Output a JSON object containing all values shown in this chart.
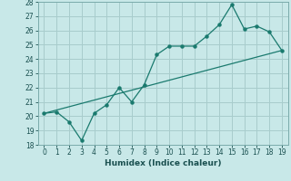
{
  "xlabel": "Humidex (Indice chaleur)",
  "line1_x": [
    0,
    1,
    2,
    3,
    4,
    5,
    6,
    7,
    8,
    9,
    10,
    11,
    12,
    13,
    14,
    15,
    16,
    17,
    18,
    19
  ],
  "line1_y": [
    20.2,
    20.3,
    19.6,
    18.3,
    20.2,
    20.8,
    22.0,
    21.0,
    22.2,
    24.3,
    24.9,
    24.9,
    24.9,
    25.6,
    26.4,
    27.8,
    26.1,
    26.3,
    25.9,
    24.6
  ],
  "line2_x": [
    0,
    19
  ],
  "line2_y": [
    20.2,
    24.6
  ],
  "line_color": "#1a7a6e",
  "bg_color": "#c8e8e8",
  "grid_color": "#a8cccc",
  "ylim": [
    18,
    28
  ],
  "xlim": [
    -0.5,
    19.5
  ],
  "yticks": [
    18,
    19,
    20,
    21,
    22,
    23,
    24,
    25,
    26,
    27,
    28
  ],
  "xticks": [
    0,
    1,
    2,
    3,
    4,
    5,
    6,
    7,
    8,
    9,
    10,
    11,
    12,
    13,
    14,
    15,
    16,
    17,
    18,
    19
  ]
}
